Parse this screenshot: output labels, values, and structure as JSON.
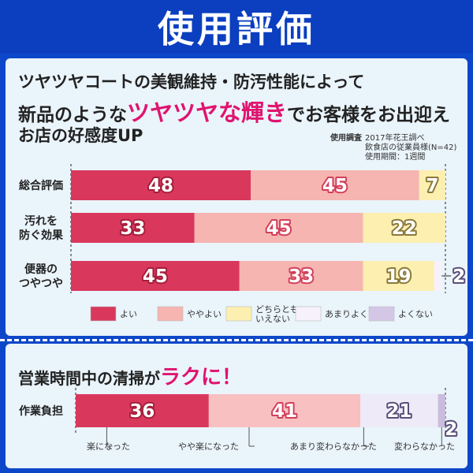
{
  "banner": {
    "title": "使用評価"
  },
  "headline": {
    "line1": "ツヤツヤコートの美観維持・防汚性能によって",
    "line2_pre": "新品のような",
    "line2_accent": "ツヤツヤな輝き",
    "line2_post": "でお客様をお出迎え",
    "line3": "お店の好感度UP"
  },
  "survey": {
    "heading": "使用調査",
    "lines": [
      "2017年花王調べ",
      "飲食店の従業員様(N=42)",
      "使用期間：1週間"
    ]
  },
  "bottom_heading": {
    "pre": "営業時間中の清掃が",
    "accent": "ラクに！"
  },
  "colors": {
    "accent": "#e0136f",
    "good": "#d9385c",
    "somewhat_good": "#f6b5b0",
    "neutral": "#fcefb0",
    "somewhat_bad": "#f6f1fb",
    "bad": "#d4c7e6",
    "bot_easier": "#d9385c",
    "bot_somewhat": "#f8c0c0",
    "bot_notmuch": "#eeeaf7",
    "bot_unchanged": "#c9bcdc"
  },
  "chart_data": [
    {
      "type": "bar",
      "orientation": "horizontal",
      "stacked": true,
      "categories": [
        "総合評価",
        "汚れを\n防ぐ効果",
        "便器の\nつやつや"
      ],
      "series": [
        {
          "name": "よい",
          "values": [
            48,
            33,
            45
          ]
        },
        {
          "name": "ややよい",
          "values": [
            45,
            45,
            33
          ]
        },
        {
          "name": "どちらとも\nいえない",
          "values": [
            7,
            22,
            19
          ]
        },
        {
          "name": "あまりよくない",
          "values": [
            0,
            0,
            2
          ]
        },
        {
          "name": "よくない",
          "values": [
            0,
            0,
            0
          ]
        }
      ],
      "xlim": [
        0,
        100
      ],
      "legend": "bottom"
    },
    {
      "type": "bar",
      "orientation": "horizontal",
      "stacked": true,
      "categories": [
        "作業負担"
      ],
      "series": [
        {
          "name": "楽になった",
          "values": [
            36
          ]
        },
        {
          "name": "やや楽になった",
          "values": [
            41
          ]
        },
        {
          "name": "あまり変わらなかった",
          "values": [
            21
          ]
        },
        {
          "name": "変わらなかった",
          "values": [
            2
          ]
        }
      ],
      "xlim": [
        0,
        100
      ],
      "legend": "callouts-below"
    }
  ]
}
